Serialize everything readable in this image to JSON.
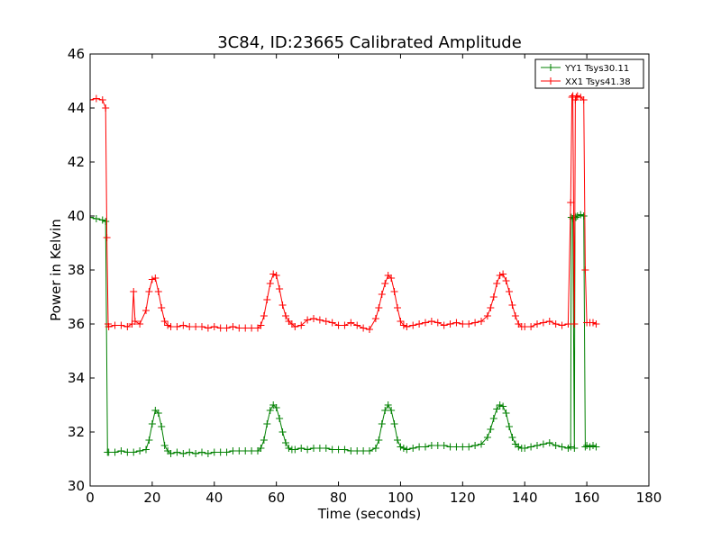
{
  "chart_data": {
    "type": "line",
    "title": "3C84, ID:23665 Calibrated Amplitude",
    "xlabel": "Time (seconds)",
    "ylabel": "Power in Kelvin",
    "xlim": [
      0,
      180
    ],
    "ylim": [
      30,
      46
    ],
    "xticks": [
      "0",
      "20",
      "40",
      "60",
      "80",
      "100",
      "120",
      "140",
      "160",
      "180"
    ],
    "yticks": [
      "30",
      "32",
      "34",
      "36",
      "38",
      "40",
      "42",
      "44",
      "46"
    ],
    "grid": false,
    "legend_position": "top-right",
    "marker": "+",
    "series": [
      {
        "name": "YY1 Tsys30.11",
        "color": "#008000",
        "x": [
          0,
          2,
          4,
          5,
          5.6,
          6,
          8,
          10,
          12,
          14,
          16,
          18,
          19,
          20,
          21,
          22,
          23,
          24,
          25,
          26,
          28,
          30,
          32,
          34,
          36,
          38,
          40,
          42,
          44,
          46,
          48,
          50,
          52,
          54,
          55,
          56,
          57,
          58,
          59,
          60,
          61,
          62,
          63,
          64,
          65,
          66,
          68,
          70,
          72,
          74,
          76,
          78,
          80,
          82,
          84,
          86,
          88,
          90,
          92,
          93,
          94,
          95,
          96,
          97,
          98,
          99,
          100,
          101,
          102,
          104,
          106,
          108,
          110,
          112,
          114,
          116,
          118,
          120,
          122,
          124,
          126,
          128,
          129,
          130,
          131,
          132,
          133,
          134,
          135,
          136,
          137,
          138,
          139,
          140,
          142,
          144,
          146,
          148,
          150,
          152,
          154,
          154.8,
          155,
          155.5,
          156,
          156.2,
          156.5,
          157,
          158,
          159,
          159.5,
          160,
          161,
          162,
          163
        ],
        "y": [
          39.95,
          39.9,
          39.85,
          39.8,
          31.25,
          31.25,
          31.25,
          31.3,
          31.25,
          31.25,
          31.3,
          31.35,
          31.7,
          32.3,
          32.8,
          32.7,
          32.2,
          31.5,
          31.3,
          31.2,
          31.25,
          31.2,
          31.25,
          31.2,
          31.25,
          31.2,
          31.25,
          31.25,
          31.25,
          31.3,
          31.3,
          31.3,
          31.3,
          31.3,
          31.4,
          31.7,
          32.3,
          32.8,
          33.0,
          32.9,
          32.5,
          32.0,
          31.6,
          31.4,
          31.35,
          31.35,
          31.4,
          31.35,
          31.4,
          31.4,
          31.4,
          31.35,
          31.35,
          31.35,
          31.3,
          31.3,
          31.3,
          31.3,
          31.4,
          31.7,
          32.3,
          32.8,
          33.0,
          32.8,
          32.3,
          31.7,
          31.45,
          31.4,
          31.35,
          31.4,
          31.45,
          31.45,
          31.5,
          31.5,
          31.5,
          31.45,
          31.45,
          31.45,
          31.45,
          31.5,
          31.55,
          31.8,
          32.1,
          32.5,
          32.85,
          33.0,
          32.95,
          32.7,
          32.2,
          31.8,
          31.55,
          31.45,
          31.4,
          31.4,
          31.45,
          31.5,
          31.55,
          31.6,
          31.5,
          31.45,
          31.4,
          31.45,
          39.95,
          39.9,
          31.4,
          40.0,
          39.95,
          40.0,
          40.05,
          40.0,
          31.45,
          31.5,
          31.45,
          31.5,
          31.45
        ]
      },
      {
        "name": "XX1 Tsys41.38",
        "color": "#ff0000",
        "x": [
          0,
          2,
          4,
          5,
          5.4,
          5.8,
          6,
          8,
          10,
          12,
          13.5,
          14,
          14.5,
          16,
          18,
          19,
          20,
          21,
          22,
          23,
          24,
          25,
          26,
          28,
          30,
          32,
          34,
          36,
          38,
          40,
          42,
          44,
          46,
          48,
          50,
          52,
          54,
          55,
          56,
          57,
          58,
          59,
          60,
          61,
          62,
          63,
          64,
          65,
          66,
          68,
          70,
          72,
          74,
          76,
          78,
          80,
          82,
          84,
          86,
          88,
          90,
          92,
          93,
          94,
          95,
          96,
          97,
          98,
          99,
          100,
          101,
          102,
          104,
          106,
          108,
          110,
          112,
          114,
          116,
          118,
          120,
          122,
          124,
          126,
          128,
          129,
          130,
          131,
          132,
          133,
          134,
          135,
          136,
          137,
          138,
          139,
          140,
          142,
          144,
          146,
          148,
          150,
          152,
          154,
          154.8,
          155.2,
          155.5,
          156,
          156.3,
          156.6,
          157,
          158,
          159,
          159.5,
          160,
          161,
          162,
          163
        ],
        "y": [
          44.3,
          44.35,
          44.3,
          44.0,
          39.2,
          36.0,
          35.9,
          35.95,
          35.95,
          35.9,
          36.0,
          37.2,
          36.1,
          36.0,
          36.5,
          37.2,
          37.65,
          37.7,
          37.2,
          36.6,
          36.1,
          35.95,
          35.9,
          35.9,
          35.95,
          35.9,
          35.9,
          35.9,
          35.85,
          35.9,
          35.85,
          35.85,
          35.9,
          35.85,
          35.85,
          35.85,
          35.85,
          35.95,
          36.3,
          36.9,
          37.5,
          37.85,
          37.8,
          37.3,
          36.7,
          36.3,
          36.1,
          36.0,
          35.9,
          35.95,
          36.15,
          36.2,
          36.15,
          36.1,
          36.05,
          35.95,
          35.95,
          36.05,
          35.95,
          35.85,
          35.8,
          36.2,
          36.6,
          37.1,
          37.5,
          37.8,
          37.7,
          37.2,
          36.6,
          36.1,
          35.95,
          35.9,
          35.95,
          36.0,
          36.05,
          36.1,
          36.05,
          35.95,
          36.0,
          36.05,
          36.0,
          36.0,
          36.05,
          36.1,
          36.3,
          36.6,
          37.0,
          37.5,
          37.8,
          37.85,
          37.6,
          37.2,
          36.7,
          36.3,
          36.0,
          35.9,
          35.9,
          35.9,
          36.0,
          36.05,
          36.1,
          36.0,
          35.95,
          36.0,
          40.5,
          44.4,
          44.45,
          36.0,
          44.3,
          44.4,
          44.45,
          44.4,
          44.3,
          38.0,
          36.05,
          36.05,
          36.05,
          36.0
        ]
      }
    ]
  }
}
